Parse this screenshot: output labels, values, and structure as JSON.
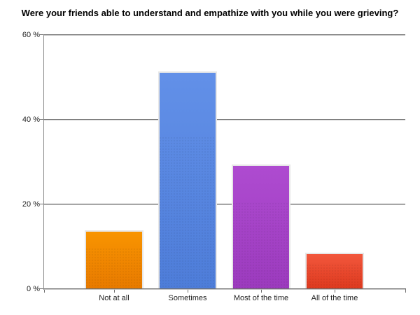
{
  "chart_data": {
    "type": "bar",
    "title": "Were your friends able to understand and empathize with you while you were grieving?",
    "categories": [
      "Not at all",
      "Sometimes",
      "Most of the time",
      "All of the time"
    ],
    "values": [
      13.7,
      51.2,
      29.3,
      8.4
    ],
    "unit": "%",
    "xlabel": "",
    "ylabel": "",
    "ylim": [
      0,
      60
    ],
    "yticks": [
      0,
      20,
      40,
      60
    ],
    "ytick_labels": [
      "0 %",
      "20 %",
      "40 %",
      "60 %"
    ],
    "grid": true,
    "legend": false,
    "background_color": "#FFFFFF",
    "title_color": "#000000",
    "axis_color": "#6F6F6F",
    "tick_label_color": "#222222",
    "bar_border_color": "#E7E7E7",
    "bar_colors": [
      {
        "name": "orange",
        "top": "#F89400",
        "bottom": "#E87A00"
      },
      {
        "name": "blue",
        "top": "#6290E8",
        "bottom": "#4E7DD9"
      },
      {
        "name": "purple",
        "top": "#AE4BD0",
        "bottom": "#9C3BBE"
      },
      {
        "name": "red",
        "top": "#F2573C",
        "bottom": "#DE3A1F"
      }
    ]
  }
}
